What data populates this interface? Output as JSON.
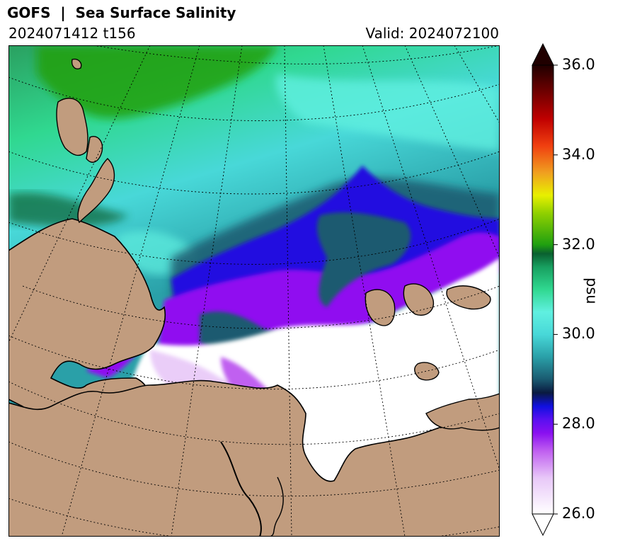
{
  "header": {
    "title": "GOFS  |  Sea Surface Salinity",
    "run": "2024071412 t156",
    "valid": "Valid: 2024072100"
  },
  "colorbar": {
    "unit": "psu",
    "min": 26.0,
    "max": 36.0,
    "ticks": [
      "36.0",
      "34.0",
      "32.0",
      "30.0",
      "28.0",
      "26.0"
    ],
    "tick_values": [
      36,
      34,
      32,
      30,
      28,
      26
    ],
    "extend": "both",
    "stops": [
      {
        "value": 26.0,
        "color": "#ffffff"
      },
      {
        "value": 26.8,
        "color": "#e8c8f8"
      },
      {
        "value": 27.4,
        "color": "#c060f0"
      },
      {
        "value": 27.8,
        "color": "#8a10f0"
      },
      {
        "value": 28.1,
        "color": "#5a10f0"
      },
      {
        "value": 28.4,
        "color": "#1010e0"
      },
      {
        "value": 28.7,
        "color": "#0a1a40"
      },
      {
        "value": 29.0,
        "color": "#1a5a70"
      },
      {
        "value": 29.5,
        "color": "#2aa0a8"
      },
      {
        "value": 30.0,
        "color": "#48d8d8"
      },
      {
        "value": 30.5,
        "color": "#60f0e0"
      },
      {
        "value": 31.0,
        "color": "#30d890"
      },
      {
        "value": 31.5,
        "color": "#18a060"
      },
      {
        "value": 31.8,
        "color": "#0a6030"
      },
      {
        "value": 32.0,
        "color": "#20a010"
      },
      {
        "value": 32.7,
        "color": "#90d000"
      },
      {
        "value": 33.1,
        "color": "#e8f000"
      },
      {
        "value": 33.6,
        "color": "#f0a020"
      },
      {
        "value": 34.2,
        "color": "#f04010"
      },
      {
        "value": 34.8,
        "color": "#c00000"
      },
      {
        "value": 35.4,
        "color": "#700000"
      },
      {
        "value": 36.0,
        "color": "#200000"
      }
    ]
  },
  "colors": {
    "land": "#c19c7e",
    "fresh_ice": "#ffffff",
    "ocean_mid": "#48d8d8",
    "ocean_green": "#2aa060",
    "purple": "#9010f0",
    "blue": "#2010e0"
  }
}
